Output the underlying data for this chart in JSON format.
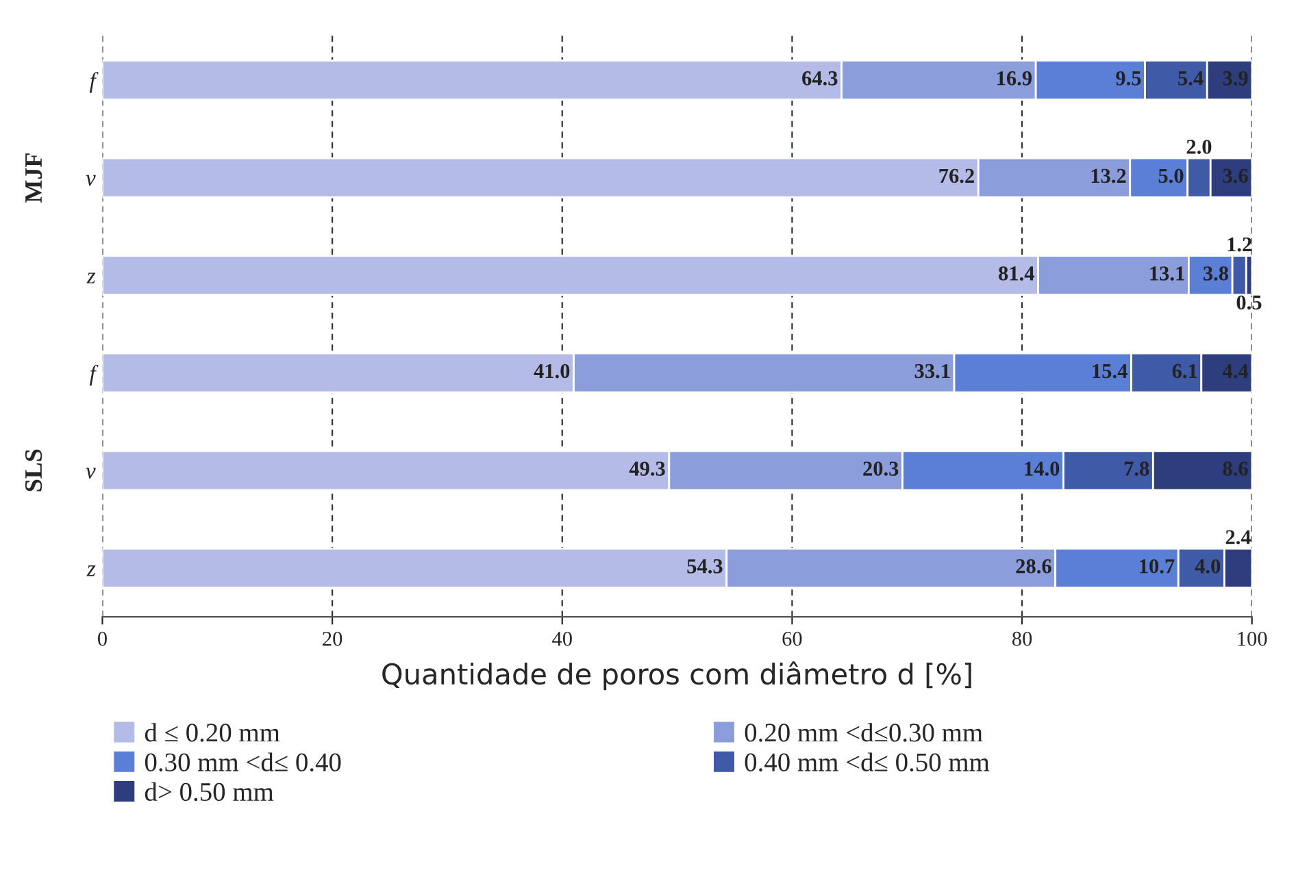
{
  "chart_data": {
    "type": "bar",
    "orientation": "horizontal",
    "stacked": true,
    "categories": [
      "f",
      "v",
      "z",
      "f",
      "v",
      "z"
    ],
    "series": [
      {
        "name": "d ≤ 0.20 mm",
        "color": "#b3bbe6",
        "values": [
          64.3,
          76.2,
          81.4,
          41.0,
          49.3,
          54.3
        ],
        "value_labels": [
          "64.3",
          "76.2",
          "81.4",
          "41.0",
          "49.3",
          "54.3"
        ]
      },
      {
        "name": "0.20 mm <d≤0.30 mm",
        "color": "#8c9ddb",
        "values": [
          16.9,
          13.2,
          13.1,
          33.1,
          20.3,
          28.6
        ],
        "value_labels": [
          "16.9",
          "13.2",
          "13.1",
          "33.1",
          "20.3",
          "28.6"
        ]
      },
      {
        "name": "0.30 mm <d≤ 0.40",
        "color": "#5b7ed6",
        "values": [
          9.5,
          5.0,
          3.8,
          15.4,
          14.0,
          10.7
        ],
        "value_labels": [
          "9.5",
          "5.0",
          "3.8",
          "15.4",
          "14.0",
          "10.7"
        ]
      },
      {
        "name": "0.40 mm <d≤ 0.50 mm",
        "color": "#3f5aa6",
        "values": [
          5.4,
          2.0,
          1.2,
          6.1,
          7.8,
          4.0
        ],
        "value_labels": [
          "5.4",
          "2.0",
          "1.2",
          "6.1",
          "7.8",
          "4.0"
        ]
      },
      {
        "name": "d> 0.50 mm",
        "color": "#2d3d7e",
        "values": [
          3.9,
          3.6,
          0.5,
          4.4,
          8.6,
          2.4
        ],
        "value_labels": [
          "3.9",
          "3.6",
          "0.5",
          "4.4",
          "8.6",
          "2.4"
        ]
      }
    ],
    "xlabel": "Quantidade de poros com diâmetro d [%]",
    "xlim": [
      0,
      100
    ],
    "xticks": [
      0,
      20,
      40,
      60,
      80,
      100
    ],
    "grid": "x",
    "legend": "bottom",
    "annotations": [
      "MJF",
      "SLS"
    ]
  }
}
